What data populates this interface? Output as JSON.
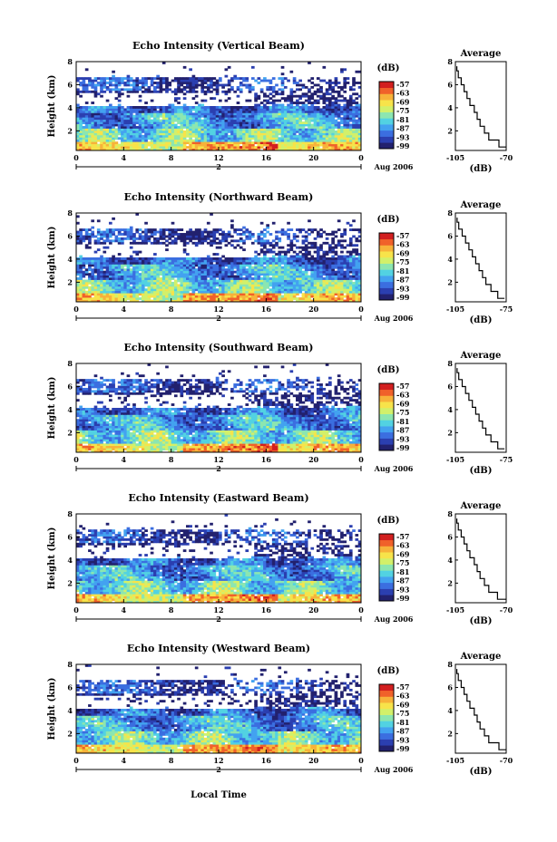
{
  "figure": {
    "xlabel": "Local Time",
    "date_label": "Aug 2006",
    "day_label": "2",
    "colorbar_unit": "(dB)",
    "colorbar_ticks": [
      "-57",
      "-63",
      "-69",
      "-75",
      "-81",
      "-87",
      "-93",
      "-99"
    ],
    "colors": {
      "scale": [
        "#22216e",
        "#2b3fb0",
        "#3b6ee0",
        "#43a2f0",
        "#52d2e2",
        "#8ce6b0",
        "#d2f06a",
        "#f7e34a",
        "#f7b23a",
        "#f0612a",
        "#d21f1f"
      ]
    }
  },
  "chart_data": [
    {
      "type": "heatmap",
      "title": "Echo Intensity (Vertical Beam)",
      "ylabel": "Height (km)",
      "x_ticks": [
        "0",
        "4",
        "8",
        "12",
        "16",
        "20",
        "0"
      ],
      "y_ticks": [
        "2",
        "4",
        "6",
        "8"
      ],
      "xlim": [
        0,
        24
      ],
      "ylim": [
        0.3,
        8
      ],
      "zlim": [
        -99,
        -57
      ],
      "profile": {
        "title": "Average",
        "xlabel": "(dB)",
        "x_ticks": [
          "-105",
          "-70"
        ],
        "xlim": [
          -105,
          -70
        ],
        "heights": [
          0.6,
          1.2,
          1.8,
          2.4,
          3.0,
          3.6,
          4.2,
          4.8,
          5.4,
          6.0,
          6.6,
          7.2,
          7.6
        ],
        "values": [
          -70,
          -75,
          -82,
          -85,
          -88,
          -90,
          -92,
          -95,
          -97,
          -99,
          -101,
          -103,
          -104
        ]
      }
    },
    {
      "type": "heatmap",
      "title": "Echo Intensity (Northward Beam)",
      "ylabel": "Height (km)",
      "x_ticks": [
        "0",
        "4",
        "8",
        "12",
        "16",
        "20",
        "0"
      ],
      "y_ticks": [
        "2",
        "4",
        "6",
        "8"
      ],
      "xlim": [
        0,
        24
      ],
      "ylim": [
        0.3,
        8
      ],
      "zlim": [
        -99,
        -57
      ],
      "profile": {
        "title": "Average",
        "xlabel": "(dB)",
        "x_ticks": [
          "-105",
          "-75"
        ],
        "xlim": [
          -105,
          -75
        ],
        "heights": [
          0.6,
          1.2,
          1.8,
          2.4,
          3.0,
          3.6,
          4.2,
          4.8,
          5.4,
          6.0,
          6.6,
          7.2,
          7.6
        ],
        "values": [
          -76,
          -80,
          -84,
          -87,
          -89,
          -91,
          -93,
          -95,
          -97,
          -99,
          -101,
          -103,
          -104
        ]
      }
    },
    {
      "type": "heatmap",
      "title": "Echo Intensity (Southward Beam)",
      "ylabel": "Height (km)",
      "x_ticks": [
        "0",
        "4",
        "8",
        "12",
        "16",
        "20",
        "0"
      ],
      "y_ticks": [
        "2",
        "4",
        "6",
        "8"
      ],
      "xlim": [
        0,
        24
      ],
      "ylim": [
        0.3,
        8
      ],
      "zlim": [
        -99,
        -57
      ],
      "profile": {
        "title": "Average",
        "xlabel": "(dB)",
        "x_ticks": [
          "-105",
          "-75"
        ],
        "xlim": [
          -105,
          -75
        ],
        "heights": [
          0.6,
          1.2,
          1.8,
          2.4,
          3.0,
          3.6,
          4.2,
          4.8,
          5.4,
          6.0,
          6.6,
          7.2,
          7.6
        ],
        "values": [
          -76,
          -80,
          -84,
          -87,
          -89,
          -91,
          -93,
          -95,
          -97,
          -99,
          -101,
          -103,
          -104
        ]
      }
    },
    {
      "type": "heatmap",
      "title": "Echo Intensity (Eastward Beam)",
      "ylabel": "Height (km)",
      "x_ticks": [
        "0",
        "4",
        "8",
        "12",
        "16",
        "20",
        "0"
      ],
      "y_ticks": [
        "2",
        "4",
        "6",
        "8"
      ],
      "xlim": [
        0,
        24
      ],
      "ylim": [
        0.3,
        8
      ],
      "zlim": [
        -99,
        -57
      ],
      "profile": {
        "title": "Average",
        "xlabel": "(dB)",
        "x_ticks": [
          "-105",
          "-70"
        ],
        "xlim": [
          -105,
          -70
        ],
        "heights": [
          0.6,
          1.2,
          1.8,
          2.4,
          3.0,
          3.6,
          4.2,
          4.8,
          5.4,
          6.0,
          6.6,
          7.2,
          7.6
        ],
        "values": [
          -70,
          -76,
          -82,
          -85,
          -88,
          -90,
          -92,
          -95,
          -97,
          -99,
          -101,
          -103,
          -104
        ]
      }
    },
    {
      "type": "heatmap",
      "title": "Echo Intensity (Westward Beam)",
      "ylabel": "Height (km)",
      "x_ticks": [
        "0",
        "4",
        "8",
        "12",
        "16",
        "20",
        "0"
      ],
      "y_ticks": [
        "2",
        "4",
        "6",
        "8"
      ],
      "xlim": [
        0,
        24
      ],
      "ylim": [
        0.3,
        8
      ],
      "zlim": [
        -99,
        -57
      ],
      "profile": {
        "title": "Average",
        "xlabel": "(dB)",
        "x_ticks": [
          "-105",
          "-70"
        ],
        "xlim": [
          -105,
          -70
        ],
        "heights": [
          0.6,
          1.2,
          1.8,
          2.4,
          3.0,
          3.6,
          4.2,
          4.8,
          5.4,
          6.0,
          6.6,
          7.2,
          7.6
        ],
        "values": [
          -70,
          -75,
          -82,
          -85,
          -88,
          -90,
          -92,
          -95,
          -97,
          -99,
          -101,
          -103,
          -104
        ]
      }
    }
  ]
}
